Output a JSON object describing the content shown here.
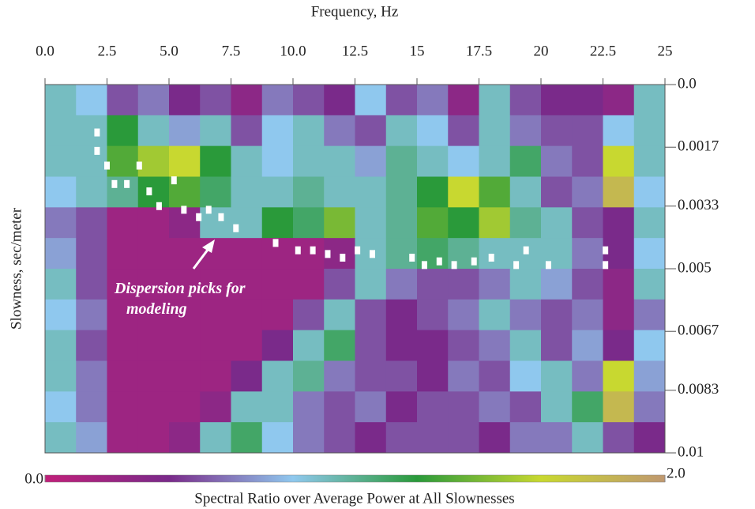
{
  "chart_data": {
    "type": "heatmap",
    "xlabel": "Frequency, Hz",
    "ylabel": "Slowness, sec/meter",
    "xlim": [
      0,
      25
    ],
    "xticks": [
      {
        "value": 0,
        "label": "0.0"
      },
      2.5,
      {
        "value": 5,
        "label": "5.0"
      },
      7.5,
      {
        "value": 10,
        "label": "10.0"
      },
      12.5,
      15,
      17.5,
      20,
      22.5,
      25
    ],
    "ylim": [
      0,
      0.01
    ],
    "y_inverted": true,
    "yticks": [
      {
        "value": 0,
        "label": "0.0"
      },
      0.0017,
      0.0033,
      0.005,
      0.0067,
      0.0083,
      0.01
    ],
    "x": [
      0.625,
      1.875,
      3.125,
      4.375,
      5.625,
      6.875,
      8.125,
      9.375,
      10.625,
      11.875,
      13.125,
      14.375,
      15.625,
      16.875,
      18.125,
      19.375,
      20.625,
      21.875,
      23.125,
      24.375
    ],
    "y": [
      0.000417,
      0.00125,
      0.002083,
      0.002917,
      0.00375,
      0.004583,
      0.005417,
      0.00625,
      0.007083,
      0.007917,
      0.00875,
      0.009583
    ],
    "z": [
      [
        0.9,
        0.8,
        0.5,
        0.6,
        0.4,
        0.5,
        0.3,
        0.6,
        0.5,
        0.4,
        0.8,
        0.5,
        0.6,
        0.3,
        0.9,
        0.5,
        0.4,
        0.4,
        0.3,
        0.9
      ],
      [
        0.9,
        0.9,
        1.2,
        0.9,
        0.7,
        0.9,
        0.5,
        0.8,
        0.9,
        0.6,
        0.5,
        0.9,
        0.8,
        0.5,
        0.9,
        0.6,
        0.5,
        0.5,
        0.8,
        0.9
      ],
      [
        0.9,
        0.9,
        1.3,
        1.5,
        1.6,
        1.2,
        0.9,
        0.8,
        0.9,
        0.9,
        0.7,
        1.0,
        0.9,
        0.8,
        0.9,
        1.1,
        0.6,
        0.5,
        1.6,
        0.9
      ],
      [
        0.8,
        0.9,
        1.0,
        1.2,
        1.3,
        1.1,
        0.9,
        0.9,
        1.0,
        0.9,
        0.9,
        1.0,
        1.2,
        1.6,
        1.3,
        0.9,
        0.5,
        0.6,
        1.8,
        0.8
      ],
      [
        0.6,
        0.5,
        0.2,
        0.2,
        0.3,
        0.9,
        0.9,
        1.2,
        1.1,
        1.4,
        0.9,
        1.0,
        1.3,
        1.2,
        1.5,
        1.0,
        0.9,
        0.5,
        0.4,
        0.9
      ],
      [
        0.7,
        0.5,
        0.2,
        0.2,
        0.2,
        0.2,
        0.2,
        0.2,
        0.2,
        0.3,
        0.9,
        1.0,
        1.1,
        1.0,
        0.9,
        0.9,
        0.9,
        0.6,
        0.4,
        0.8
      ],
      [
        0.9,
        0.5,
        0.2,
        0.2,
        0.2,
        0.2,
        0.2,
        0.2,
        0.2,
        0.5,
        0.9,
        0.6,
        0.5,
        0.5,
        0.6,
        0.9,
        0.7,
        0.5,
        0.3,
        0.9
      ],
      [
        0.8,
        0.6,
        0.2,
        0.2,
        0.2,
        0.2,
        0.2,
        0.2,
        0.5,
        0.9,
        0.5,
        0.4,
        0.5,
        0.6,
        0.9,
        0.6,
        0.5,
        0.6,
        0.3,
        0.6
      ],
      [
        0.9,
        0.5,
        0.2,
        0.2,
        0.2,
        0.2,
        0.2,
        0.4,
        0.9,
        1.1,
        0.5,
        0.4,
        0.4,
        0.5,
        0.6,
        0.9,
        0.5,
        0.7,
        0.4,
        0.8
      ],
      [
        0.9,
        0.6,
        0.2,
        0.2,
        0.2,
        0.2,
        0.4,
        0.9,
        1.0,
        0.6,
        0.5,
        0.5,
        0.4,
        0.6,
        0.5,
        0.8,
        0.9,
        0.6,
        1.6,
        0.7
      ],
      [
        0.8,
        0.6,
        0.2,
        0.2,
        0.2,
        0.3,
        0.9,
        0.9,
        0.6,
        0.5,
        0.6,
        0.4,
        0.5,
        0.5,
        0.6,
        0.5,
        0.9,
        1.1,
        1.8,
        0.6
      ],
      [
        0.9,
        0.7,
        0.2,
        0.2,
        0.3,
        0.9,
        1.1,
        0.8,
        0.6,
        0.5,
        0.4,
        0.5,
        0.5,
        0.5,
        0.4,
        0.6,
        0.6,
        0.9,
        0.5,
        0.4
      ]
    ],
    "colormap": [
      "#c0207a",
      "#7a2a8a",
      "#8fc8ee",
      "#2a9a3a",
      "#c8d830",
      "#c09870"
    ],
    "clim": [
      0,
      2
    ],
    "cticks": [
      {
        "value": 0,
        "label": "0.0"
      },
      {
        "value": 2,
        "label": "2.0"
      }
    ],
    "colorbar_label": "Spectral Ratio over Average Power at All Slownesses",
    "picks": {
      "color": "#ffffff",
      "x": [
        2.1,
        2.1,
        2.5,
        2.8,
        3.3,
        3.8,
        4.2,
        4.6,
        5.2,
        5.6,
        6.2,
        6.6,
        7.1,
        7.7,
        9.3,
        10.2,
        10.8,
        11.4,
        12.0,
        12.6,
        13.2,
        14.8,
        15.3,
        15.9,
        16.5,
        17.3,
        18.0,
        19.0,
        19.4,
        20.3,
        22.6,
        22.6
      ],
      "y": [
        0.0013,
        0.0018,
        0.0022,
        0.0027,
        0.0027,
        0.0022,
        0.0029,
        0.0033,
        0.0026,
        0.0034,
        0.0036,
        0.0034,
        0.0036,
        0.0039,
        0.0043,
        0.0045,
        0.0045,
        0.0046,
        0.0047,
        0.0045,
        0.0046,
        0.0047,
        0.0049,
        0.0048,
        0.0049,
        0.0048,
        0.0047,
        0.0049,
        0.0045,
        0.0049,
        0.0049,
        0.0045
      ]
    },
    "annotation": [
      "Dispersion picks for",
      "modeling"
    ]
  }
}
